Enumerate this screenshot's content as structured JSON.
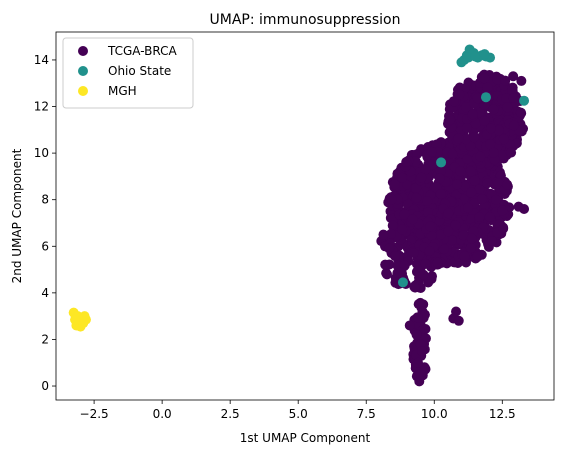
{
  "chart_data": {
    "type": "scatter",
    "title": "UMAP: immunosuppression",
    "xlabel": "1st UMAP Component",
    "ylabel": "2nd UMAP Component",
    "xlim": [
      -3.9,
      14.4
    ],
    "ylim": [
      -0.6,
      15.2
    ],
    "xticks": [
      -2.5,
      0.0,
      2.5,
      5.0,
      7.5,
      10.0,
      12.5
    ],
    "xtick_labels": [
      "−2.5",
      "0.0",
      "2.5",
      "5.0",
      "7.5",
      "10.0",
      "12.5"
    ],
    "yticks": [
      0,
      2,
      4,
      6,
      8,
      10,
      12,
      14
    ],
    "ytick_labels": [
      "0",
      "2",
      "4",
      "6",
      "8",
      "10",
      "12",
      "14"
    ],
    "grid": false,
    "legend_position": "top-left",
    "series": [
      {
        "name": "TCGA-BRCA",
        "color": "#440154",
        "clusters": [
          {
            "x": [
              8.3,
              12.8
            ],
            "y": [
              5.2,
              10.5
            ],
            "n": 900
          },
          {
            "x": [
              10.5,
              13.3
            ],
            "y": [
              9.5,
              13.4
            ],
            "n": 350
          },
          {
            "x": [
              8.0,
              10.2
            ],
            "y": [
              4.0,
              7.5
            ],
            "n": 120
          },
          {
            "x": [
              9.2,
              9.8
            ],
            "y": [
              0.2,
              3.6
            ],
            "n": 60
          }
        ],
        "points": [
          {
            "x": 9.45,
            "y": 0.2
          },
          {
            "x": 9.5,
            "y": 0.5
          },
          {
            "x": 9.4,
            "y": 1.0
          },
          {
            "x": 9.55,
            "y": 1.5
          },
          {
            "x": 9.35,
            "y": 2.2
          },
          {
            "x": 9.1,
            "y": 2.6
          },
          {
            "x": 8.9,
            "y": 4.5
          },
          {
            "x": 13.1,
            "y": 7.7
          },
          {
            "x": 13.3,
            "y": 7.6
          },
          {
            "x": 10.7,
            "y": 2.9
          },
          {
            "x": 10.9,
            "y": 2.8
          },
          {
            "x": 10.8,
            "y": 3.2
          },
          {
            "x": 13.2,
            "y": 13.1
          },
          {
            "x": 12.9,
            "y": 13.3
          }
        ]
      },
      {
        "name": "Ohio State",
        "color": "#21918c",
        "points": [
          {
            "x": 11.0,
            "y": 13.9
          },
          {
            "x": 11.1,
            "y": 14.0
          },
          {
            "x": 11.2,
            "y": 14.2
          },
          {
            "x": 11.3,
            "y": 14.45
          },
          {
            "x": 11.45,
            "y": 14.3
          },
          {
            "x": 11.6,
            "y": 14.1
          },
          {
            "x": 11.75,
            "y": 14.2
          },
          {
            "x": 11.9,
            "y": 14.15
          },
          {
            "x": 12.05,
            "y": 14.1
          },
          {
            "x": 11.25,
            "y": 14.1
          },
          {
            "x": 11.5,
            "y": 14.15
          },
          {
            "x": 11.85,
            "y": 14.25
          },
          {
            "x": 11.9,
            "y": 12.4
          },
          {
            "x": 13.3,
            "y": 12.25
          },
          {
            "x": 10.25,
            "y": 9.6
          },
          {
            "x": 8.85,
            "y": 4.45
          }
        ]
      },
      {
        "name": "MGH",
        "color": "#fde725",
        "points": [
          {
            "x": -3.25,
            "y": 3.15
          },
          {
            "x": -3.1,
            "y": 3.0
          },
          {
            "x": -2.95,
            "y": 2.95
          },
          {
            "x": -2.8,
            "y": 2.85
          },
          {
            "x": -3.05,
            "y": 2.75
          },
          {
            "x": -3.15,
            "y": 2.6
          },
          {
            "x": -3.0,
            "y": 2.55
          },
          {
            "x": -2.9,
            "y": 2.7
          },
          {
            "x": -3.2,
            "y": 2.85
          },
          {
            "x": -2.85,
            "y": 3.0
          }
        ]
      }
    ]
  }
}
